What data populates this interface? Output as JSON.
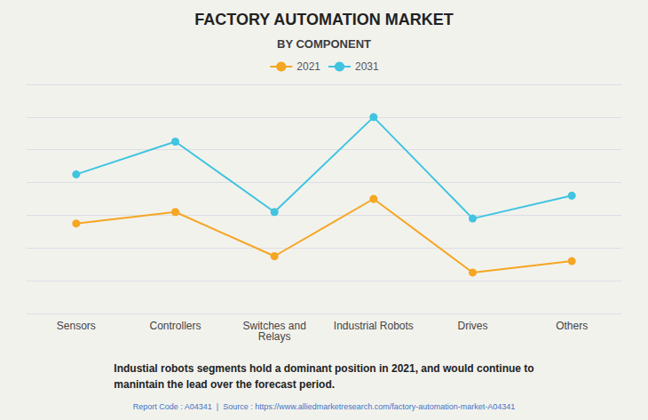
{
  "chart_data": {
    "type": "line",
    "title": "FACTORY AUTOMATION MARKET",
    "subtitle": "BY COMPONENT",
    "categories": [
      "Sensors",
      "Controllers",
      "Switches and\nRelays",
      "Industrial Robots",
      "Drives",
      "Others"
    ],
    "series": [
      {
        "name": "2021",
        "color": "#F5A623",
        "marker": "circle",
        "values": [
          5.5,
          6.2,
          3.5,
          7.0,
          2.5,
          3.2
        ]
      },
      {
        "name": "2031",
        "color": "#40C4E0",
        "marker": "circle",
        "values": [
          8.5,
          10.5,
          6.2,
          12.0,
          5.8,
          7.2
        ]
      }
    ],
    "ylim": [
      0,
      14
    ],
    "yticks": [
      0,
      2,
      4,
      6,
      8,
      10,
      12,
      14
    ],
    "grid": true,
    "legend": "top",
    "tick_labels": "x",
    "annotations": [
      "Industial robots segments hold a dominant position in 2021, and would continue to\nmanintain the lead over the forecast period.",
      "Report Code : A04341  |  Source : https://www.alliedmarketresearch.com/factory-automation-market-A04341"
    ]
  }
}
